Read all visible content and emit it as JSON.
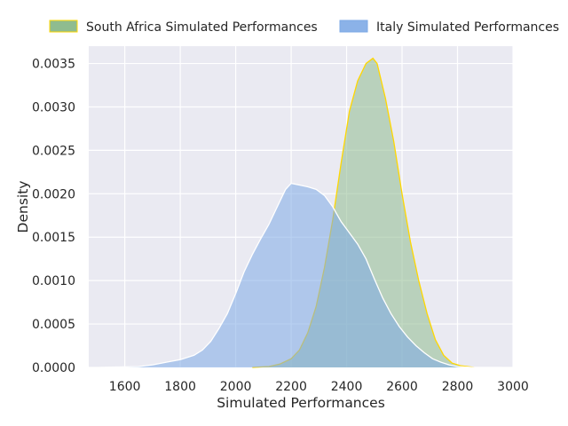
{
  "chart_data": {
    "type": "area",
    "xlabel": "Simulated Performances",
    "ylabel": "Density",
    "xlim": [
      1470,
      3000
    ],
    "ylim": [
      0,
      0.0037
    ],
    "x_ticks": [
      1600,
      1800,
      2000,
      2200,
      2400,
      2600,
      2800,
      3000
    ],
    "y_ticks": [
      0.0,
      0.0005,
      0.001,
      0.0015,
      0.002,
      0.0025,
      0.003,
      0.0035
    ],
    "y_tick_labels": [
      "0.0000",
      "0.0005",
      "0.0010",
      "0.0015",
      "0.0020",
      "0.0025",
      "0.0030",
      "0.0035"
    ],
    "grid": true,
    "legend_position": "top, above plot",
    "series": [
      {
        "name": "South Africa Simulated Performances",
        "fill_color": "#8fbc8f",
        "line_color": "#ffd700",
        "points": [
          [
            2060,
            0.0
          ],
          [
            2120,
            1e-05
          ],
          [
            2160,
            4e-05
          ],
          [
            2200,
            0.0001
          ],
          [
            2230,
            0.0002
          ],
          [
            2260,
            0.0004
          ],
          [
            2290,
            0.0007
          ],
          [
            2320,
            0.00115
          ],
          [
            2350,
            0.0017
          ],
          [
            2380,
            0.00235
          ],
          [
            2410,
            0.00295
          ],
          [
            2440,
            0.0033
          ],
          [
            2470,
            0.0035
          ],
          [
            2495,
            0.00356
          ],
          [
            2510,
            0.0035
          ],
          [
            2540,
            0.0031
          ],
          [
            2570,
            0.0026
          ],
          [
            2600,
            0.002
          ],
          [
            2630,
            0.00145
          ],
          [
            2660,
            0.001
          ],
          [
            2690,
            0.00062
          ],
          [
            2720,
            0.00032
          ],
          [
            2750,
            0.00014
          ],
          [
            2780,
            5e-05
          ],
          [
            2810,
            2e-05
          ],
          [
            2860,
            0.0
          ]
        ]
      },
      {
        "name": "Italy Simulated Performances",
        "fill_color": "#7eaae6",
        "line_color": "#ffffff",
        "points": [
          [
            1510,
            0.0
          ],
          [
            1650,
            1e-05
          ],
          [
            1700,
            3e-05
          ],
          [
            1750,
            6e-05
          ],
          [
            1800,
            9e-05
          ],
          [
            1850,
            0.00014
          ],
          [
            1880,
            0.0002
          ],
          [
            1910,
            0.0003
          ],
          [
            1940,
            0.00045
          ],
          [
            1970,
            0.00062
          ],
          [
            2000,
            0.00085
          ],
          [
            2030,
            0.0011
          ],
          [
            2060,
            0.0013
          ],
          [
            2090,
            0.00148
          ],
          [
            2120,
            0.00165
          ],
          [
            2150,
            0.00185
          ],
          [
            2180,
            0.00205
          ],
          [
            2200,
            0.00212
          ],
          [
            2230,
            0.0021
          ],
          [
            2260,
            0.00208
          ],
          [
            2290,
            0.00205
          ],
          [
            2320,
            0.00198
          ],
          [
            2350,
            0.00185
          ],
          [
            2380,
            0.00168
          ],
          [
            2410,
            0.00155
          ],
          [
            2440,
            0.00142
          ],
          [
            2470,
            0.00125
          ],
          [
            2500,
            0.00102
          ],
          [
            2530,
            0.0008
          ],
          [
            2560,
            0.00062
          ],
          [
            2590,
            0.00047
          ],
          [
            2620,
            0.00035
          ],
          [
            2650,
            0.00025
          ],
          [
            2680,
            0.00017
          ],
          [
            2710,
            0.0001
          ],
          [
            2740,
            6e-05
          ],
          [
            2770,
            3e-05
          ],
          [
            2800,
            1e-05
          ],
          [
            2850,
            0.0
          ],
          [
            2960,
            0.0
          ]
        ]
      }
    ]
  }
}
